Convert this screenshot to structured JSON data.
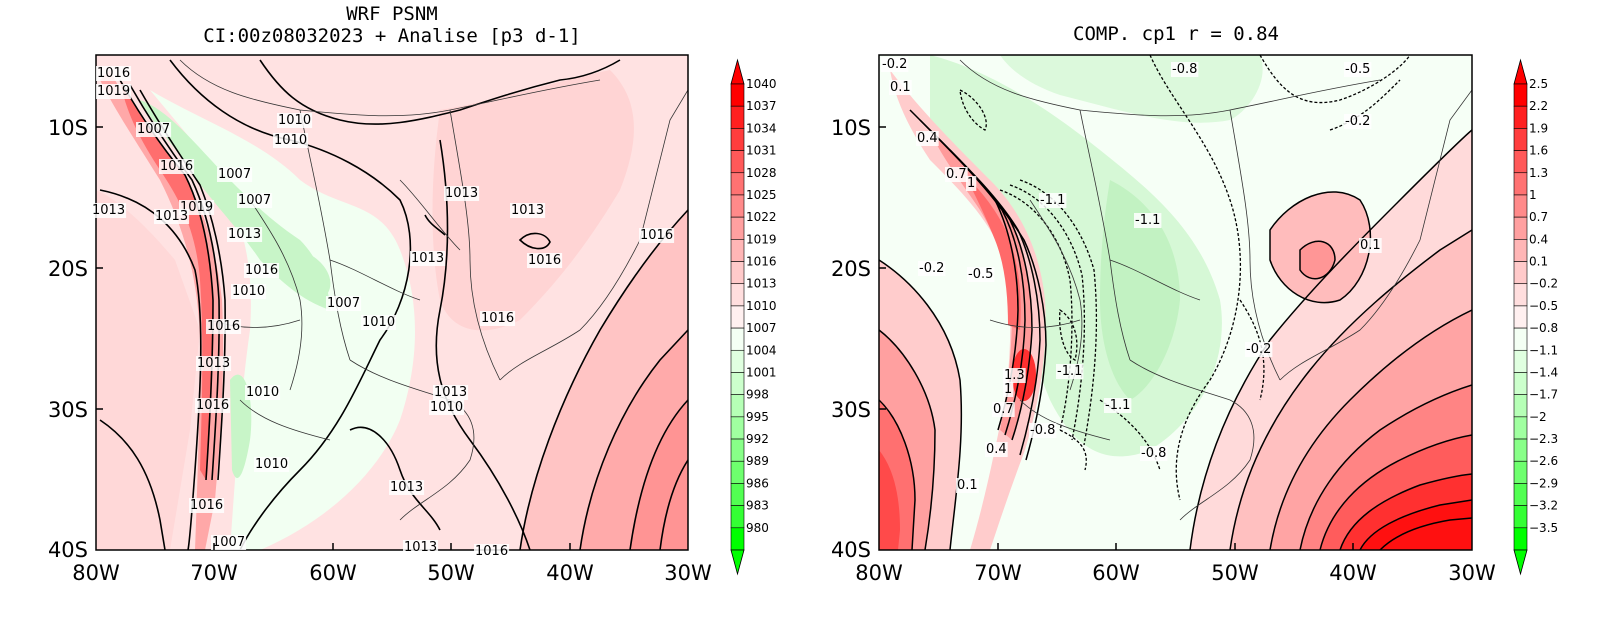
{
  "left_panel": {
    "title_line1": "WRF PSNM",
    "title_line2": "CI:00z08032023 + Analise  [p3 d-1]",
    "x_ticks": [
      "80W",
      "70W",
      "60W",
      "50W",
      "40W",
      "30W"
    ],
    "y_ticks": [
      "10S",
      "20S",
      "30S",
      "40S"
    ],
    "colorbar_levels": [
      "1040",
      "1037",
      "1034",
      "1031",
      "1028",
      "1025",
      "1022",
      "1019",
      "1016",
      "1013",
      "1010",
      "1007",
      "1004",
      "1001",
      "998",
      "995",
      "992",
      "989",
      "986",
      "983",
      "980"
    ],
    "colorbar_colors": [
      "#ff0000",
      "#ff2020",
      "#ff3d3d",
      "#ff5959",
      "#ff7272",
      "#ff8a8a",
      "#ffa0a0",
      "#ffb6b6",
      "#ffcaca",
      "#ffdede",
      "#fff0f0",
      "#f4fff4",
      "#e0ffe0",
      "#ccffcc",
      "#b6ffb6",
      "#a0ffa0",
      "#88ff88",
      "#6eff6e",
      "#52ff52",
      "#34ff34",
      "#00ff00"
    ],
    "contour_labels": [
      "1016",
      "1019",
      "1007",
      "1016",
      "1010",
      "1010",
      "1007",
      "1007",
      "1013",
      "1019",
      "1013",
      "1013",
      "1013",
      "1013",
      "1016",
      "1016",
      "1016",
      "1016",
      "1010",
      "1007",
      "1010",
      "1013",
      "1013",
      "1010",
      "1016",
      "1016",
      "1013",
      "1010",
      "1010",
      "1013",
      "1007",
      "1013",
      "1016",
      "1016"
    ]
  },
  "right_panel": {
    "title": "COMP. cp1  r =  0.84",
    "x_ticks": [
      "80W",
      "70W",
      "60W",
      "50W",
      "40W",
      "30W"
    ],
    "y_ticks": [
      "10S",
      "20S",
      "30S",
      "40S"
    ],
    "colorbar_levels": [
      "2.5",
      "2.2",
      "1.9",
      "1.6",
      "1.3",
      "1",
      "0.7",
      "0.4",
      "0.1",
      "−0.2",
      "−0.5",
      "−0.8",
      "−1.1",
      "−1.4",
      "−1.7",
      "−2",
      "−2.3",
      "−2.6",
      "−2.9",
      "−3.2",
      "−3.5"
    ],
    "colorbar_colors": [
      "#ff0000",
      "#ff2020",
      "#ff3d3d",
      "#ff5959",
      "#ff7272",
      "#ff8a8a",
      "#ffa0a0",
      "#ffb6b6",
      "#ffcaca",
      "#ffdede",
      "#fff0f0",
      "#f4fff4",
      "#e0ffe0",
      "#ccffcc",
      "#b6ffb6",
      "#a0ffa0",
      "#88ff88",
      "#6eff6e",
      "#52ff52",
      "#34ff34",
      "#00ff00"
    ],
    "contour_labels": [
      "-0.2",
      "0.1",
      "-0.8",
      "-0.5",
      "-0.2",
      "0.4",
      "0.7",
      "1",
      "-1.1",
      "-1.1",
      "0.1",
      "-0.2",
      "-0.5",
      "1.3",
      "-1.1",
      "1",
      "0.7",
      "-1.1",
      "-0.2",
      "0.4",
      "-0.8",
      "-0.8",
      "0.1"
    ]
  }
}
